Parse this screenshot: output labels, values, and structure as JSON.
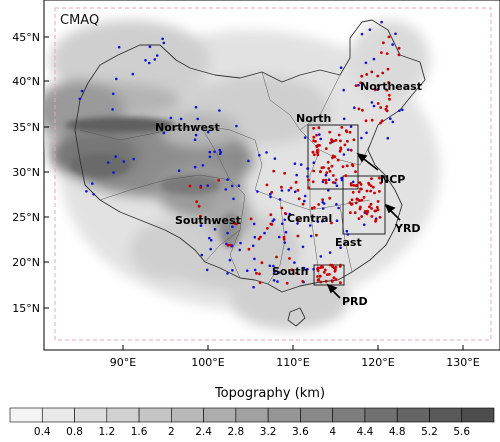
{
  "map": {
    "model_label": "CMAQ",
    "lat_ticks": [
      "45°N",
      "40°N",
      "35°N",
      "30°N",
      "25°N",
      "20°N",
      "15°N"
    ],
    "lon_ticks": [
      "90°E",
      "100°E",
      "110°E",
      "120°E",
      "130°E"
    ],
    "regions": [
      "Northeast",
      "North",
      "Northwest",
      "NCP",
      "YRD",
      "Central",
      "Southwest",
      "East",
      "South",
      "PRD"
    ],
    "site_colors": {
      "primary": "#cc0000",
      "secondary": "#1010dd"
    }
  },
  "colorbar": {
    "title": "Topography (km)",
    "levels": [
      "0.4",
      "0.8",
      "1.2",
      "1.6",
      "2",
      "2.4",
      "2.8",
      "3.2",
      "3.6",
      "4",
      "4.4",
      "4.8",
      "5.2",
      "5.6"
    ],
    "colors": [
      "#f4f4f4",
      "#e9e9e9",
      "#dddddd",
      "#d1d1d1",
      "#c5c5c5",
      "#b9b9b9",
      "#adadad",
      "#a1a1a1",
      "#959595",
      "#898989",
      "#7d7d7d",
      "#717171",
      "#656565",
      "#595959",
      "#4d4d4d"
    ]
  }
}
